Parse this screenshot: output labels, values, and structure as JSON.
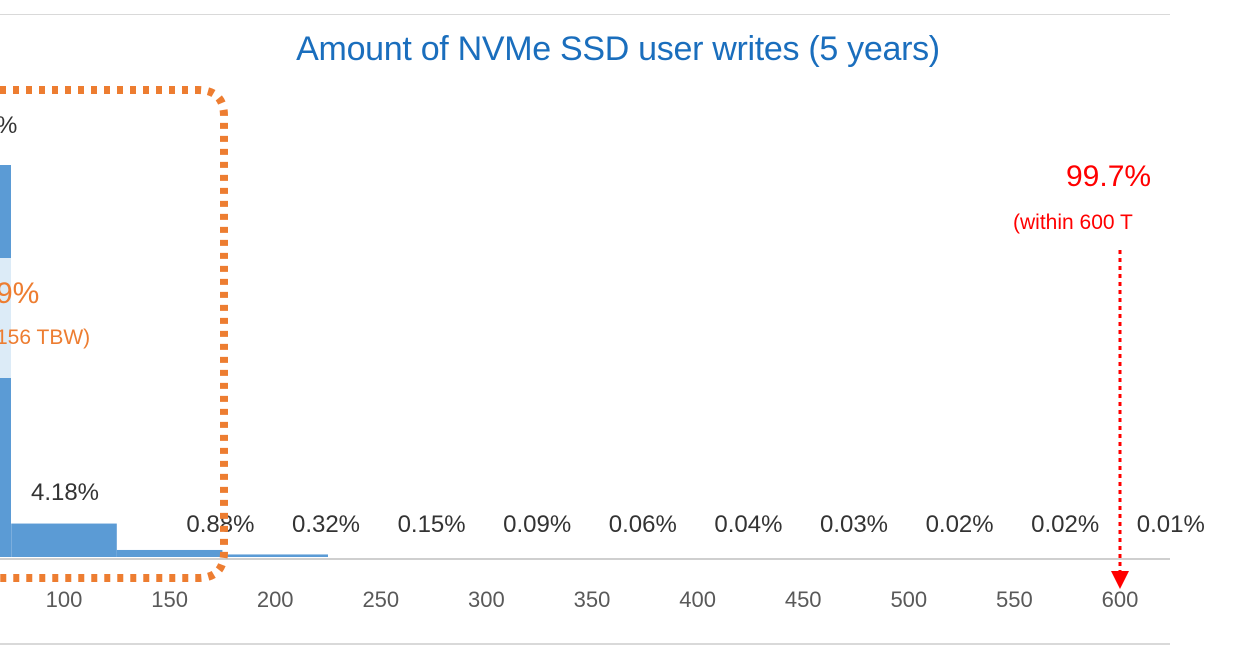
{
  "chart_data": {
    "type": "bar",
    "title": "Amount of NVMe SSD user writes (5 years)",
    "xlabel": "",
    "ylabel": "",
    "x_ticks": [
      "100",
      "150",
      "200",
      "250",
      "300",
      "350",
      "400",
      "450",
      "500",
      "550",
      "600"
    ],
    "categories": [
      "100",
      "150",
      "200",
      "250",
      "300",
      "350",
      "400",
      "450",
      "500",
      "550",
      "600"
    ],
    "values": [
      4.18,
      0.88,
      0.32,
      0.15,
      0.09,
      0.06,
      0.04,
      0.03,
      0.02,
      0.02,
      0.01
    ],
    "value_labels": [
      "4.18%",
      "0.88%",
      "0.32%",
      "0.15%",
      "0.09%",
      "0.06%",
      "0.04%",
      "0.03%",
      "0.02%",
      "0.02%",
      "0.01%"
    ],
    "partial_top_label": "%",
    "grid": false,
    "colors": {
      "bar": "#5b9bd5",
      "bar_light": "#dcebf7",
      "title": "#1a6ebd",
      "highlight": "#ed7d31",
      "marker": "#ff0000"
    },
    "annotations": {
      "highlight_box": {
        "percent": "9%",
        "note": "156 TBW)"
      },
      "marker": {
        "percent": "99.7%",
        "note": "(within 600 T",
        "at_x": "600"
      }
    }
  }
}
